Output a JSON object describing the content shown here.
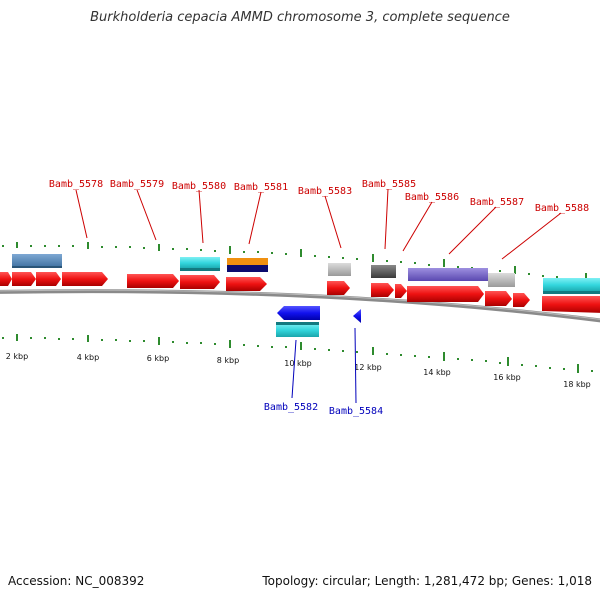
{
  "header": {
    "title": "Burkholderia cepacia AMMD chromosome 3, complete sequence"
  },
  "footer": {
    "accession": "Accession: NC_008392",
    "summary": "Topology: circular; Length: 1,281,472 bp; Genes: 1,018"
  },
  "scale_labels": [
    "2 kbp",
    "4 kbp",
    "6 kbp",
    "8 kbp",
    "10 kbp",
    "12 kbp",
    "14 kbp",
    "16 kbp",
    "18 kbp"
  ],
  "top_labels": [
    "Bamb_5578",
    "Bamb_5579",
    "Bamb_5580",
    "Bamb_5581",
    "Bamb_5583",
    "Bamb_5585",
    "Bamb_5586",
    "Bamb_5587",
    "Bamb_5588"
  ],
  "bottom_labels": [
    "Bamb_5582",
    "Bamb_5584"
  ],
  "colors": {
    "forward_label": "#cc0000",
    "reverse_label": "#0000bb",
    "tick": "#2e8b2e",
    "backbone": "#777777",
    "cds": "#ee1111",
    "reverse_cds": "#1111ee",
    "feature_steelblue": "#4f86b8",
    "feature_cyan": "#33d6dd",
    "feature_orange": "#f09010",
    "feature_navy": "#0b0b6e",
    "feature_lightgray": "#c0c0c0",
    "feature_darkgray": "#606060",
    "feature_purple": "#7b68cc"
  }
}
